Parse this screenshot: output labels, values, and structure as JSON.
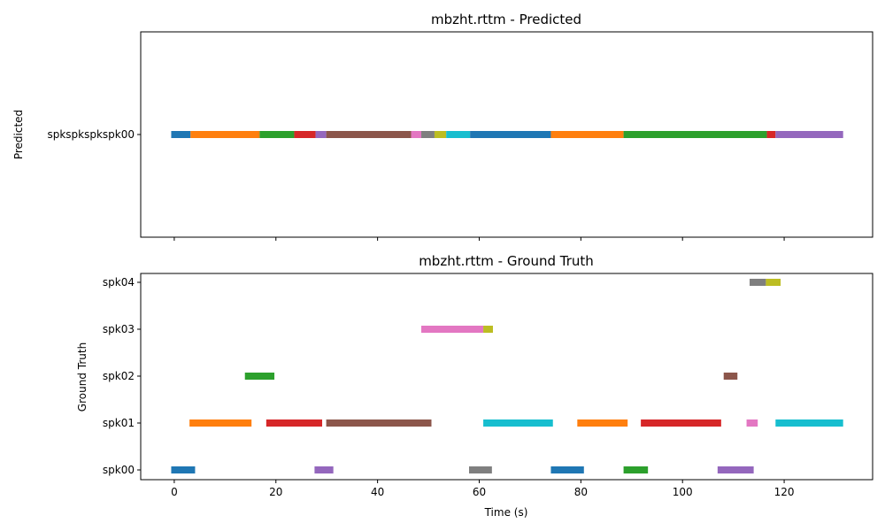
{
  "chart_data": [
    {
      "type": "timeline",
      "title": "mbzht.rttm - Predicted",
      "ylabel": "Predicted",
      "xlabel": "",
      "xlim": [
        -6.6,
        137.4
      ],
      "xticks": [
        0,
        20,
        40,
        60,
        80,
        100,
        120
      ],
      "show_xtick_labels": false,
      "grid": false,
      "rows": [
        "spkspkspkspk00"
      ],
      "segments": [
        {
          "row": 0,
          "start": -0.6,
          "end": 3.2,
          "color": "#1f77b4"
        },
        {
          "row": 0,
          "start": 3.2,
          "end": 16.8,
          "color": "#ff7f0e"
        },
        {
          "row": 0,
          "start": 16.8,
          "end": 23.6,
          "color": "#2ca02c"
        },
        {
          "row": 0,
          "start": 23.6,
          "end": 27.8,
          "color": "#d62728"
        },
        {
          "row": 0,
          "start": 27.8,
          "end": 29.9,
          "color": "#9467bd"
        },
        {
          "row": 0,
          "start": 29.9,
          "end": 46.6,
          "color": "#8c564b"
        },
        {
          "row": 0,
          "start": 46.6,
          "end": 48.6,
          "color": "#e377c2"
        },
        {
          "row": 0,
          "start": 48.6,
          "end": 51.2,
          "color": "#7f7f7f"
        },
        {
          "row": 0,
          "start": 51.2,
          "end": 53.5,
          "color": "#bcbd22"
        },
        {
          "row": 0,
          "start": 53.5,
          "end": 58.2,
          "color": "#17becf"
        },
        {
          "row": 0,
          "start": 58.2,
          "end": 74.1,
          "color": "#1f77b4"
        },
        {
          "row": 0,
          "start": 74.1,
          "end": 88.4,
          "color": "#ff7f0e"
        },
        {
          "row": 0,
          "start": 88.4,
          "end": 116.6,
          "color": "#2ca02c"
        },
        {
          "row": 0,
          "start": 116.6,
          "end": 118.3,
          "color": "#d62728"
        },
        {
          "row": 0,
          "start": 118.3,
          "end": 131.6,
          "color": "#9467bd"
        }
      ]
    },
    {
      "type": "timeline",
      "title": "mbzht.rttm - Ground Truth",
      "ylabel": "Ground Truth",
      "xlabel": "Time (s)",
      "xlim": [
        -6.6,
        137.4
      ],
      "xticks": [
        0,
        20,
        40,
        60,
        80,
        100,
        120
      ],
      "show_xtick_labels": true,
      "grid": false,
      "rows": [
        "spk00",
        "spk01",
        "spk02",
        "spk03",
        "spk04"
      ],
      "segments": [
        {
          "row": 0,
          "start": -0.6,
          "end": 4.1,
          "color": "#1f77b4"
        },
        {
          "row": 0,
          "start": 27.6,
          "end": 31.3,
          "color": "#9467bd"
        },
        {
          "row": 0,
          "start": 58.0,
          "end": 62.5,
          "color": "#7f7f7f"
        },
        {
          "row": 0,
          "start": 74.1,
          "end": 80.6,
          "color": "#1f77b4"
        },
        {
          "row": 0,
          "start": 88.4,
          "end": 93.2,
          "color": "#2ca02c"
        },
        {
          "row": 0,
          "start": 106.9,
          "end": 114.0,
          "color": "#9467bd"
        },
        {
          "row": 1,
          "start": 3.0,
          "end": 15.2,
          "color": "#ff7f0e"
        },
        {
          "row": 1,
          "start": 18.1,
          "end": 29.1,
          "color": "#d62728"
        },
        {
          "row": 1,
          "start": 29.9,
          "end": 50.6,
          "color": "#8c564b"
        },
        {
          "row": 1,
          "start": 60.8,
          "end": 74.5,
          "color": "#17becf"
        },
        {
          "row": 1,
          "start": 79.3,
          "end": 89.2,
          "color": "#ff7f0e"
        },
        {
          "row": 1,
          "start": 91.8,
          "end": 107.6,
          "color": "#d62728"
        },
        {
          "row": 1,
          "start": 112.6,
          "end": 114.8,
          "color": "#e377c2"
        },
        {
          "row": 1,
          "start": 118.3,
          "end": 131.6,
          "color": "#17becf"
        },
        {
          "row": 2,
          "start": 13.9,
          "end": 19.7,
          "color": "#2ca02c"
        },
        {
          "row": 2,
          "start": 108.1,
          "end": 110.8,
          "color": "#8c564b"
        },
        {
          "row": 3,
          "start": 48.6,
          "end": 60.8,
          "color": "#e377c2"
        },
        {
          "row": 3,
          "start": 60.8,
          "end": 62.7,
          "color": "#bcbd22"
        },
        {
          "row": 4,
          "start": 113.2,
          "end": 116.4,
          "color": "#7f7f7f"
        },
        {
          "row": 4,
          "start": 116.4,
          "end": 119.3,
          "color": "#bcbd22"
        }
      ]
    }
  ]
}
